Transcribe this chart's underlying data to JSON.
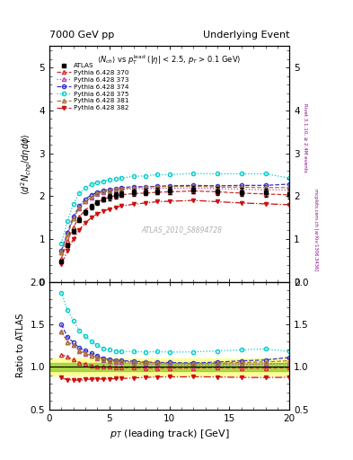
{
  "title_left": "7000 GeV pp",
  "title_right": "Underlying Event",
  "main_title": "$\\langle N_{ch}\\rangle$ vs $p_T^{\\mathrm{lead}}$ ($|\\eta|$ < 2.5, $p_T$ > 0.1 GeV)",
  "ylabel_main": "$\\langle d^2 N_{chg}/d\\eta d\\phi \\rangle$",
  "ylabel_ratio": "Ratio to ATLAS",
  "xlabel": "$p_T$ (leading track) [GeV]",
  "watermark": "ATLAS_2010_S8894728",
  "right_label_top": "Rivet 3.1.10, ≥ 2.4M events",
  "right_label_bot": "mcplots.cern.ch [arXiv:1306.3436]",
  "atlas_x": [
    1.0,
    1.5,
    2.0,
    2.5,
    3.0,
    3.5,
    4.0,
    4.5,
    5.0,
    5.5,
    6.0,
    7.0,
    8.0,
    9.0,
    10.0,
    12.0,
    14.0,
    16.0,
    18.0,
    20.0
  ],
  "atlas_y": [
    0.48,
    0.85,
    1.18,
    1.45,
    1.62,
    1.75,
    1.85,
    1.93,
    1.98,
    2.02,
    2.05,
    2.08,
    2.1,
    2.12,
    2.13,
    2.15,
    2.12,
    2.1,
    2.08,
    2.05
  ],
  "atlas_err": [
    0.03,
    0.04,
    0.05,
    0.06,
    0.06,
    0.06,
    0.06,
    0.06,
    0.07,
    0.07,
    0.07,
    0.07,
    0.08,
    0.08,
    0.08,
    0.09,
    0.09,
    0.1,
    0.1,
    0.11
  ],
  "py370_x": [
    1.0,
    1.5,
    2.0,
    2.5,
    3.0,
    3.5,
    4.0,
    4.5,
    5.0,
    5.5,
    6.0,
    7.0,
    8.0,
    9.0,
    10.0,
    12.0,
    14.0,
    16.0,
    18.0,
    20.0
  ],
  "py370_y": [
    0.55,
    0.95,
    1.28,
    1.52,
    1.68,
    1.78,
    1.86,
    1.93,
    1.98,
    2.01,
    2.03,
    2.06,
    2.07,
    2.09,
    2.1,
    2.12,
    2.1,
    2.07,
    2.05,
    2.03
  ],
  "py373_x": [
    1.0,
    1.5,
    2.0,
    2.5,
    3.0,
    3.5,
    4.0,
    4.5,
    5.0,
    5.5,
    6.0,
    7.0,
    8.0,
    9.0,
    10.0,
    12.0,
    14.0,
    16.0,
    18.0,
    20.0
  ],
  "py373_y": [
    0.68,
    1.1,
    1.48,
    1.72,
    1.87,
    1.97,
    2.04,
    2.09,
    2.12,
    2.14,
    2.16,
    2.17,
    2.17,
    2.18,
    2.18,
    2.19,
    2.17,
    2.16,
    2.15,
    2.14
  ],
  "py374_x": [
    1.0,
    1.5,
    2.0,
    2.5,
    3.0,
    3.5,
    4.0,
    4.5,
    5.0,
    5.5,
    6.0,
    7.0,
    8.0,
    9.0,
    10.0,
    12.0,
    14.0,
    16.0,
    18.0,
    20.0
  ],
  "py374_y": [
    0.72,
    1.15,
    1.52,
    1.77,
    1.93,
    2.03,
    2.09,
    2.13,
    2.16,
    2.18,
    2.2,
    2.22,
    2.22,
    2.23,
    2.24,
    2.25,
    2.24,
    2.25,
    2.25,
    2.28
  ],
  "py375_x": [
    1.0,
    1.5,
    2.0,
    2.5,
    3.0,
    3.5,
    4.0,
    4.5,
    5.0,
    5.5,
    6.0,
    7.0,
    8.0,
    9.0,
    10.0,
    12.0,
    14.0,
    16.0,
    18.0,
    20.0
  ],
  "py375_y": [
    0.9,
    1.42,
    1.82,
    2.07,
    2.2,
    2.27,
    2.32,
    2.35,
    2.38,
    2.4,
    2.42,
    2.46,
    2.47,
    2.5,
    2.5,
    2.53,
    2.52,
    2.52,
    2.52,
    2.42
  ],
  "py381_x": [
    1.0,
    1.5,
    2.0,
    2.5,
    3.0,
    3.5,
    4.0,
    4.5,
    5.0,
    5.5,
    6.0,
    7.0,
    8.0,
    9.0,
    10.0,
    12.0,
    14.0,
    16.0,
    18.0,
    20.0
  ],
  "py381_y": [
    0.68,
    1.1,
    1.48,
    1.73,
    1.88,
    1.98,
    2.06,
    2.11,
    2.14,
    2.17,
    2.18,
    2.2,
    2.21,
    2.22,
    2.22,
    2.23,
    2.21,
    2.21,
    2.2,
    2.2
  ],
  "py382_x": [
    1.0,
    1.5,
    2.0,
    2.5,
    3.0,
    3.5,
    4.0,
    4.5,
    5.0,
    5.5,
    6.0,
    7.0,
    8.0,
    9.0,
    10.0,
    12.0,
    14.0,
    16.0,
    18.0,
    20.0
  ],
  "py382_y": [
    0.42,
    0.72,
    1.0,
    1.22,
    1.38,
    1.5,
    1.59,
    1.65,
    1.7,
    1.74,
    1.77,
    1.81,
    1.84,
    1.87,
    1.88,
    1.9,
    1.87,
    1.84,
    1.82,
    1.8
  ],
  "ylim_main": [
    0,
    5.5
  ],
  "ylim_ratio": [
    0.5,
    2.0
  ],
  "xlim": [
    0,
    20
  ],
  "yticks_main": [
    0,
    1,
    2,
    3,
    4,
    5
  ],
  "yticks_ratio": [
    0.5,
    1.0,
    1.5,
    2.0
  ],
  "color_370": "#cc3333",
  "color_373": "#bb44bb",
  "color_374": "#3333cc",
  "color_375": "#00cccc",
  "color_381": "#aa7733",
  "color_382": "#cc1111"
}
